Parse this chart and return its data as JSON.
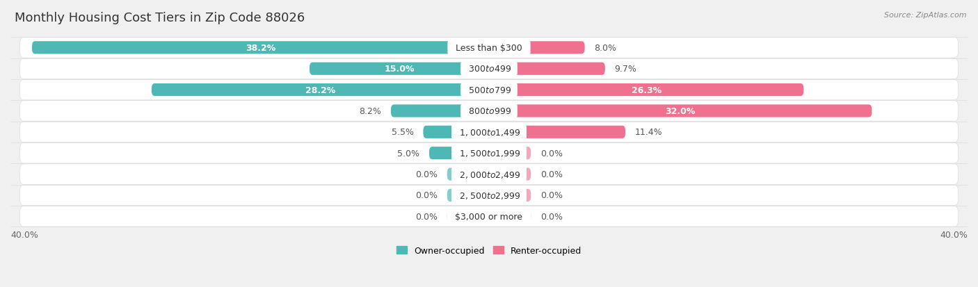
{
  "title": "Monthly Housing Cost Tiers in Zip Code 88026",
  "source": "Source: ZipAtlas.com",
  "categories": [
    "Less than $300",
    "$300 to $499",
    "$500 to $799",
    "$800 to $999",
    "$1,000 to $1,499",
    "$1,500 to $1,999",
    "$2,000 to $2,499",
    "$2,500 to $2,999",
    "$3,000 or more"
  ],
  "owner_values": [
    38.2,
    15.0,
    28.2,
    8.2,
    5.5,
    5.0,
    0.0,
    0.0,
    0.0
  ],
  "renter_values": [
    8.0,
    9.7,
    26.3,
    32.0,
    11.4,
    0.0,
    0.0,
    0.0,
    0.0
  ],
  "owner_color": "#4db8b4",
  "renter_color": "#f07090",
  "owner_label": "Owner-occupied",
  "renter_label": "Renter-occupied",
  "stub_color_owner": "#85ceca",
  "stub_color_renter": "#f4a8bc",
  "xlim": 40.0,
  "stub_size": 3.5,
  "bg_color": "#f0f0f0",
  "row_bg_color": "#ffffff",
  "row_bg_alt": "#f7f7f7",
  "title_fontsize": 13,
  "bar_height": 0.6,
  "label_fontsize": 9,
  "value_fontsize": 9,
  "source_fontsize": 8
}
